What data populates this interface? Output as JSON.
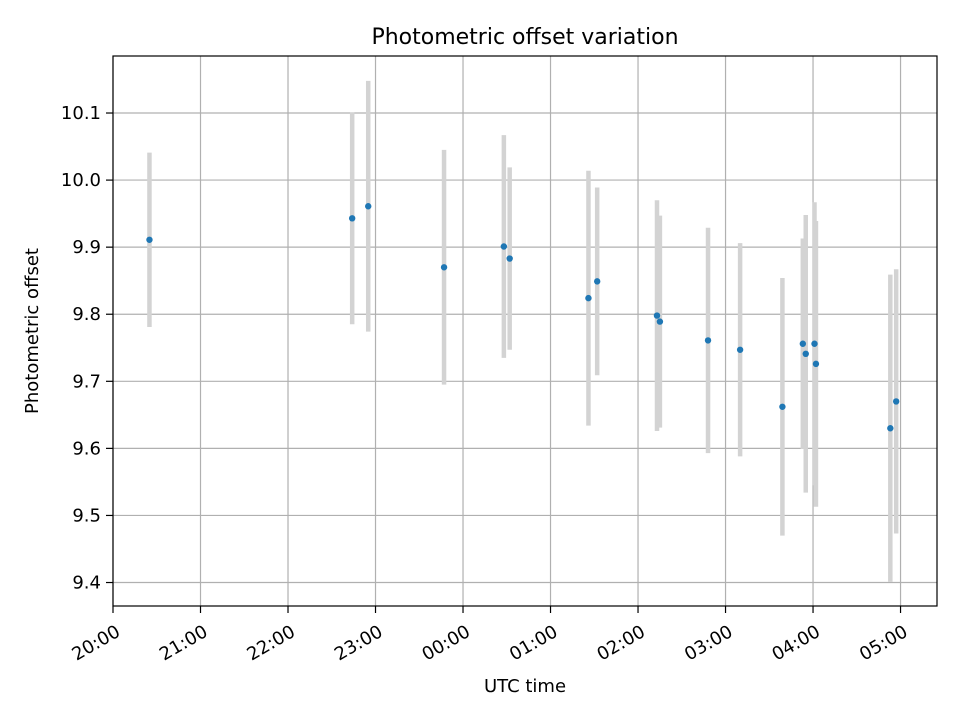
{
  "chart_data": {
    "type": "scatter",
    "title": "Photometric offset variation",
    "xlabel": "UTC time",
    "ylabel": "Photometric offset",
    "x_axis": "time",
    "xlim": [
      "20:00",
      "05:25"
    ],
    "ylim": [
      9.365,
      10.185
    ],
    "grid": true,
    "x_ticks": [
      "20:00",
      "21:00",
      "22:00",
      "23:00",
      "00:00",
      "01:00",
      "02:00",
      "03:00",
      "04:00",
      "05:00"
    ],
    "y_ticks": [
      "9.4",
      "9.5",
      "9.6",
      "9.7",
      "9.8",
      "9.9",
      "10.0",
      "10.1"
    ],
    "point_color": "#1f77b4",
    "errorbar_color": "#d3d3d3",
    "points": [
      {
        "x": "20:25",
        "y": 9.911,
        "err": 0.13
      },
      {
        "x": "22:44",
        "y": 9.943,
        "err": 0.158
      },
      {
        "x": "22:55",
        "y": 9.961,
        "err": 0.187
      },
      {
        "x": "23:47",
        "y": 9.87,
        "err": 0.175
      },
      {
        "x": "00:28",
        "y": 9.901,
        "err": 0.166
      },
      {
        "x": "00:32",
        "y": 9.883,
        "err": 0.136
      },
      {
        "x": "01:26",
        "y": 9.824,
        "err": 0.19
      },
      {
        "x": "01:32",
        "y": 9.849,
        "err": 0.14
      },
      {
        "x": "02:13",
        "y": 9.798,
        "err": 0.172
      },
      {
        "x": "02:15",
        "y": 9.789,
        "err": 0.158
      },
      {
        "x": "02:48",
        "y": 9.761,
        "err": 0.168
      },
      {
        "x": "03:10",
        "y": 9.747,
        "err": 0.159
      },
      {
        "x": "03:39",
        "y": 9.662,
        "err": 0.192
      },
      {
        "x": "03:53",
        "y": 9.756,
        "err": 0.157
      },
      {
        "x": "03:55",
        "y": 9.741,
        "err": 0.207
      },
      {
        "x": "04:01",
        "y": 9.756,
        "err": 0.211
      },
      {
        "x": "04:02",
        "y": 9.726,
        "err": 0.213
      },
      {
        "x": "04:53",
        "y": 9.63,
        "err": 0.229
      },
      {
        "x": "04:57",
        "y": 9.67,
        "err": 0.197
      }
    ]
  }
}
